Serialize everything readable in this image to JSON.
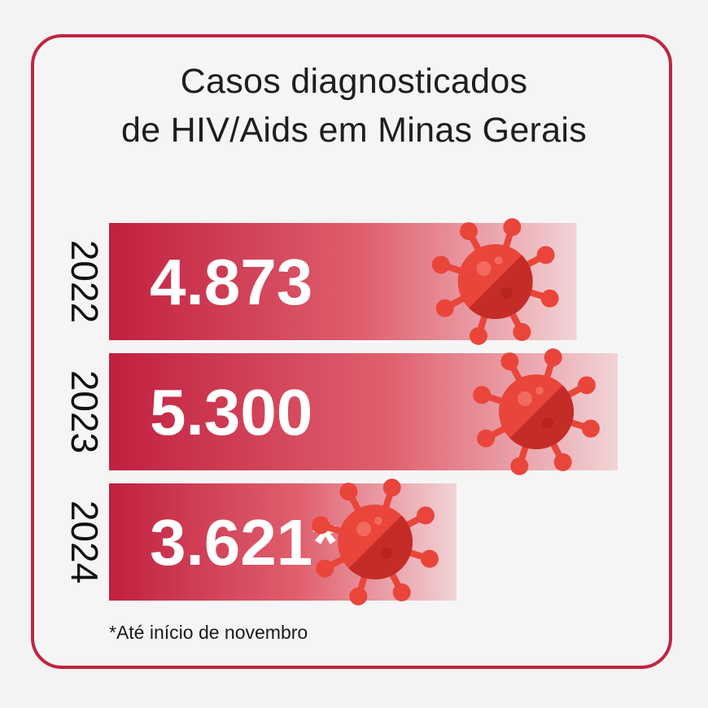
{
  "colors": {
    "border": "#c1253f",
    "bar_start": "#c1203f",
    "bar_end": "#f1d3d6",
    "virus_light": "#e9453b",
    "virus_dark": "#c42c27"
  },
  "icon": "virus-icon",
  "chart_data": {
    "type": "bar",
    "orientation": "horizontal",
    "title": "Casos diagnosticados de HIV/Aids em Minas Gerais",
    "title_lines": [
      "Casos diagnosticados",
      "de HIV/Aids em Minas Gerais"
    ],
    "categories": [
      "2022",
      "2023",
      "2024"
    ],
    "values": [
      4873,
      5300,
      3621
    ],
    "value_labels": [
      "4.873",
      "5.300",
      "3.621*"
    ],
    "xlim": [
      0,
      5300
    ],
    "grid": false,
    "legend": "none"
  },
  "footnote": "*Até início de novembro"
}
